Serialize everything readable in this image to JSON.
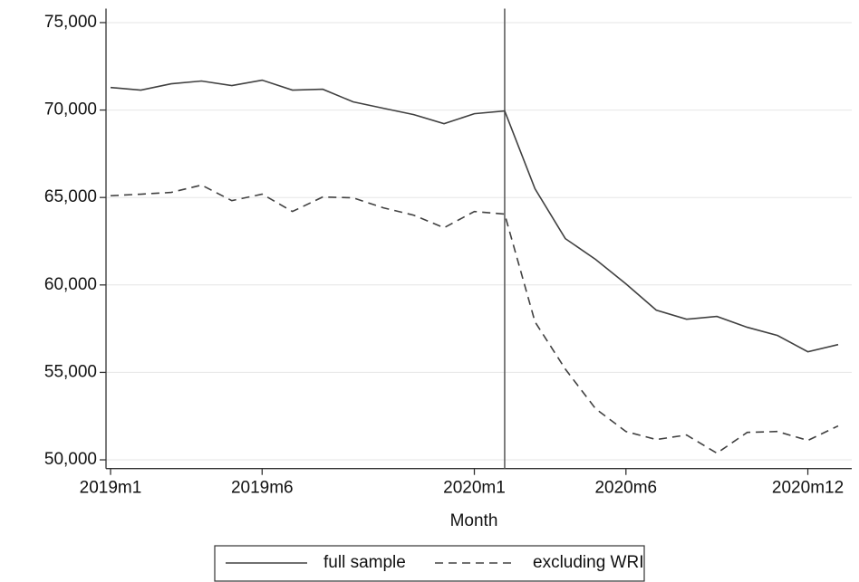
{
  "chart_data": {
    "type": "line",
    "x_label": "Month",
    "categories": [
      "2019m1",
      null,
      null,
      null,
      null,
      "2019m6",
      null,
      null,
      null,
      null,
      null,
      null,
      "2020m1",
      null,
      null,
      null,
      null,
      "2020m6",
      null,
      null,
      null,
      null,
      null,
      "2020m12",
      null
    ],
    "series": [
      {
        "name": "full sample",
        "color": "#404040",
        "style": "solid",
        "values": [
          71290,
          71140,
          71500,
          71660,
          71400,
          71710,
          71140,
          71190,
          70470,
          70100,
          69740,
          69220,
          69790,
          69950,
          65500,
          62650,
          61460,
          60060,
          58560,
          58040,
          58200,
          57580,
          57110,
          56180,
          56590
        ]
      },
      {
        "name": "excluding WRI",
        "color": "#404040",
        "style": "dashed",
        "values": [
          65100,
          65190,
          65290,
          65710,
          64820,
          65190,
          64200,
          65030,
          64980,
          64410,
          63990,
          63270,
          64200,
          64050,
          57890,
          55190,
          52920,
          51620,
          51160,
          51420,
          50380,
          51570,
          51620,
          51110,
          51940
        ]
      }
    ],
    "vline_category": 13,
    "ylim": [
      49500,
      75800
    ],
    "yticks": [
      {
        "value": 50000,
        "label": "50,000"
      },
      {
        "value": 55000,
        "label": "55,000"
      },
      {
        "value": 60000,
        "label": "60,000"
      },
      {
        "value": 65000,
        "label": "65,000"
      },
      {
        "value": 70000,
        "label": "70,000"
      },
      {
        "value": 75000,
        "label": "75,000"
      }
    ],
    "grid": true,
    "legend": "bottom"
  }
}
